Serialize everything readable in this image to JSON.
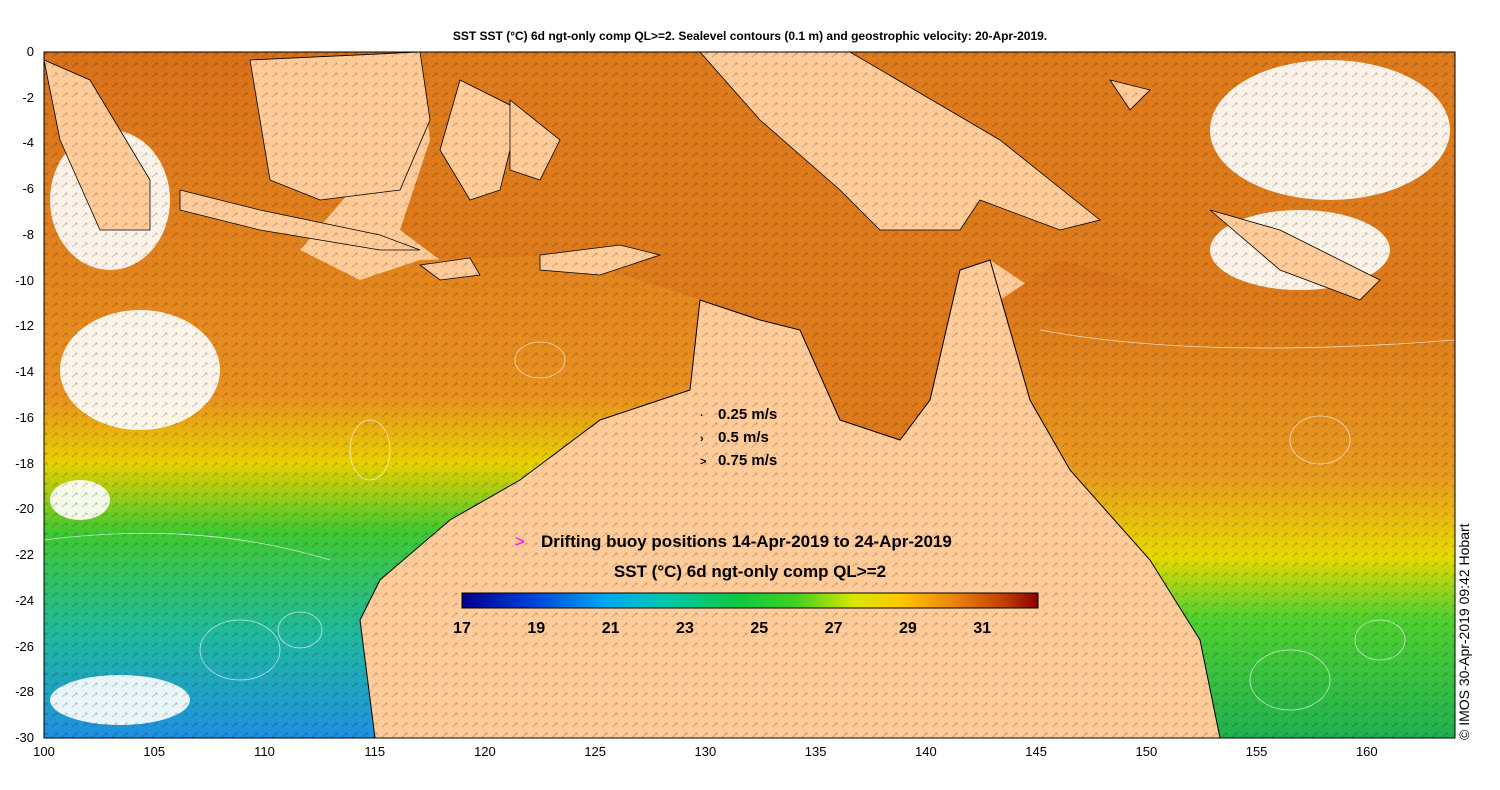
{
  "title": "SST SST (°C) 6d ngt-only comp QL>=2. Sealevel contours (0.1 m) and geostrophic velocity: 20-Apr-2019.",
  "y_ticks": [
    "0",
    "-2",
    "-4",
    "-6",
    "-8",
    "-10",
    "-12",
    "-14",
    "-16",
    "-18",
    "-20",
    "-22",
    "-24",
    "-26",
    "-28",
    "-30"
  ],
  "x_ticks": [
    "100",
    "105",
    "110",
    "115",
    "120",
    "125",
    "130",
    "135",
    "140",
    "145",
    "150",
    "155",
    "160"
  ],
  "speed_legend": [
    "0.25 m/s",
    "0.5 m/s",
    "0.75 m/s"
  ],
  "buoy_marker": ">",
  "buoy_label": "Drifting buoy positions 14-Apr-2019 to 24-Apr-2019",
  "colorbar": {
    "title": "SST (°C) 6d ngt-only comp QL>=2",
    "ticks": [
      "17",
      "19",
      "21",
      "23",
      "25",
      "27",
      "29",
      "31"
    ],
    "range": [
      17,
      32.5
    ],
    "colors": [
      "#00008b",
      "#0050d0",
      "#00a8f0",
      "#00c8a0",
      "#00c040",
      "#30d020",
      "#c8e800",
      "#ffd000",
      "#f09000",
      "#d86000",
      "#8b0000"
    ]
  },
  "credit": "© IMOS 30-Apr-2019 09:42 Hobart",
  "colors": {
    "land": "#ffcc99",
    "ocean_warm": "#e0781a",
    "ocean_cool": "#20b848"
  }
}
